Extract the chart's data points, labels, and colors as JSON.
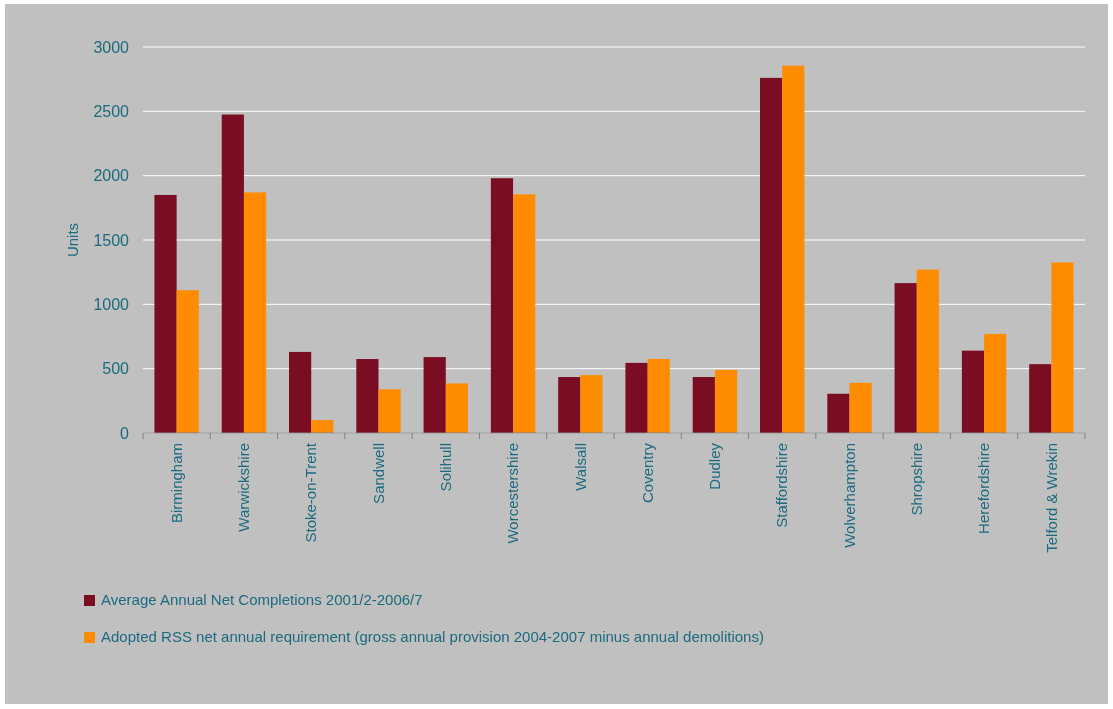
{
  "chart_data": {
    "type": "bar",
    "ylabel": "Units",
    "categories": [
      "Birmingham",
      "Warwickshire",
      "Stoke-on-Trent",
      "Sandwell",
      "Solihull",
      "Worcestershire",
      "Walsall",
      "Coventry",
      "Dudley",
      "Staffordshire",
      "Wolverhampton",
      "Shropshire",
      "Herefordshire",
      "Telford & Wrekin"
    ],
    "series": [
      {
        "name": "Average Annual Net Completions 2001/2-2006/7",
        "color": "#7b0d22",
        "values": [
          1850,
          2475,
          630,
          575,
          590,
          1980,
          435,
          545,
          435,
          2760,
          305,
          1165,
          640,
          535
        ]
      },
      {
        "name": "Adopted RSS net annual requirement (gross annual provision 2004-2007 minus annual demolitions)",
        "color": "#ff8c00",
        "values": [
          1110,
          1870,
          100,
          340,
          385,
          1855,
          450,
          575,
          490,
          2855,
          390,
          1270,
          770,
          1325
        ]
      }
    ],
    "ylim": [
      0,
      3000
    ],
    "yticks": [
      0,
      500,
      1000,
      1500,
      2000,
      2500,
      3000
    ],
    "grid": "y",
    "legend": "bottom"
  }
}
